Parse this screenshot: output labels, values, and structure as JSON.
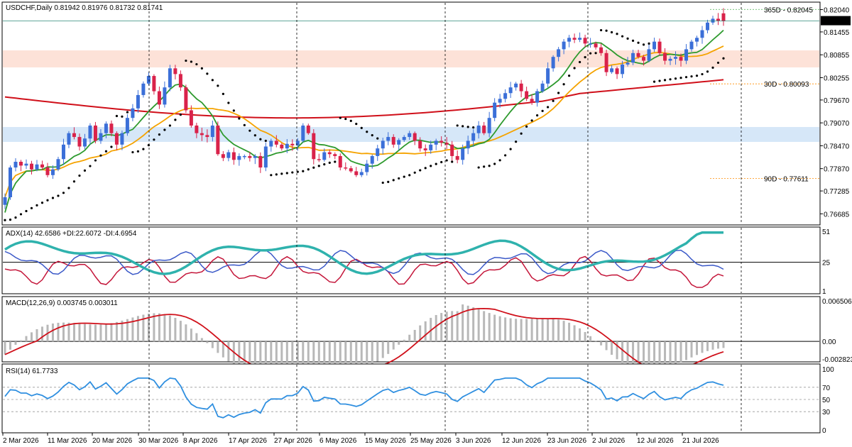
{
  "main": {
    "header": "USDCHF,Daily  0.81942 0.81976 0.81732 0.81741",
    "price_ticks": [
      "0.82040",
      "0.81455",
      "0.80855",
      "0.80255",
      "0.79670",
      "0.79070",
      "0.78470",
      "0.77870",
      "0.77285",
      "0.76685"
    ],
    "current_price": "0.81741",
    "levels": [
      {
        "label": "365D - 0.82045",
        "value": 0.82045,
        "color": "#4caf50"
      },
      {
        "label": "30D - 0.80093",
        "value": 0.80093,
        "color": "#ff8c00"
      },
      {
        "label": "90D - 0.77611",
        "value": 0.77611,
        "color": "#ff8c00"
      }
    ]
  },
  "adx": {
    "header": "ADX(14) 42.6586 +DI:22.6072 -DI:4.6954",
    "ticks": [
      "51",
      "25",
      "1"
    ]
  },
  "macd": {
    "header": "MACD(12,26,9) 0.003745 0.003011",
    "ticks": [
      "0.006506",
      "0.00",
      "-0.002823"
    ]
  },
  "rsi": {
    "header": "RSI(14) 61.7733",
    "ticks": [
      "100",
      "70",
      "50",
      "30",
      "0"
    ]
  },
  "x_labels": [
    "2 Mar 2026",
    "11 Mar 2026",
    "20 Mar 2026",
    "30 Mar 2026",
    "8 Apr 2026",
    "17 Apr 2026",
    "27 Apr 2026",
    "6 May 2026",
    "15 May 2026",
    "25 May 2026",
    "3 Jun 2026",
    "12 Jun 2026",
    "23 Jun 2026",
    "2 Jul 2026",
    "12 Jul 2026",
    "21 Jul 2026"
  ],
  "colors": {
    "bull": "#3b6fd8",
    "bear": "#d9224a",
    "ma_red": "#d0101a",
    "ma_green": "#2e9a2e",
    "ma_orange": "#f5a300",
    "adx": "#2fb2ad",
    "di_plus": "#3b59c8",
    "di_minus": "#c4163a",
    "macd_hist": "#b8b8b8",
    "macd_signal": "#d0101a",
    "rsi": "#2f8fe0"
  },
  "chart_data": [
    {
      "type": "candlestick",
      "title": "USDCHF,Daily",
      "x_start": "2 Mar 2026",
      "x_end": "31 Jul 2026",
      "ylim": [
        0.7645,
        0.8218
      ],
      "ohlc_last": {
        "open": 0.81942,
        "high": 0.81976,
        "low": 0.81732,
        "close": 0.81741
      },
      "closes": [
        0.7712,
        0.779,
        0.7805,
        0.7795,
        0.78,
        0.7785,
        0.7798,
        0.779,
        0.777,
        0.7785,
        0.7812,
        0.785,
        0.788,
        0.787,
        0.7845,
        0.7866,
        0.79,
        0.786,
        0.788,
        0.7905,
        0.788,
        0.785,
        0.788,
        0.792,
        0.7945,
        0.798,
        0.801,
        0.803,
        0.799,
        0.7955,
        0.8,
        0.805,
        0.8035,
        0.8,
        0.794,
        0.79,
        0.788,
        0.7875,
        0.787,
        0.79,
        0.7825,
        0.7815,
        0.783,
        0.781,
        0.782,
        0.782,
        0.7815,
        0.782,
        0.779,
        0.7845,
        0.786,
        0.785,
        0.784,
        0.7852,
        0.7848,
        0.786,
        0.79,
        0.788,
        0.7812,
        0.781,
        0.783,
        0.7825,
        0.782,
        0.779,
        0.7788,
        0.778,
        0.777,
        0.7778,
        0.78,
        0.782,
        0.784,
        0.786,
        0.787,
        0.785,
        0.7862,
        0.787,
        0.788,
        0.786,
        0.784,
        0.7835,
        0.785,
        0.786,
        0.7855,
        0.785,
        0.782,
        0.781,
        0.784,
        0.786,
        0.788,
        0.79,
        0.788,
        0.792,
        0.796,
        0.797,
        0.7985,
        0.8,
        0.801,
        0.799,
        0.797,
        0.796,
        0.799,
        0.801,
        0.805,
        0.808,
        0.81,
        0.812,
        0.813,
        0.8125,
        0.813,
        0.8115,
        0.8115,
        0.8105,
        0.809,
        0.804,
        0.805,
        0.8035,
        0.806,
        0.8065,
        0.809,
        0.808,
        0.807,
        0.81,
        0.812,
        0.809,
        0.807,
        0.8075,
        0.808,
        0.807,
        0.81,
        0.812,
        0.813,
        0.815,
        0.817,
        0.818,
        0.8175,
        0.8174
      ],
      "moving_averages": [
        {
          "name": "MA (red, long)",
          "values_start": 0.7975,
          "values_end": 0.7972
        },
        {
          "name": "MA (green, short)",
          "values_start": 0.7725,
          "values_end": 0.8128
        },
        {
          "name": "MA (orange, medium)",
          "values_start": 0.779,
          "values_end": 0.806
        }
      ],
      "zones": [
        {
          "from": 0.8068,
          "to": 0.8106,
          "color": "#fde2d8"
        },
        {
          "from": 0.7875,
          "to": 0.7912,
          "color": "#d6e7f8"
        }
      ]
    },
    {
      "type": "line",
      "title": "ADX(14)",
      "series": [
        {
          "name": "ADX",
          "last": 42.6586
        },
        {
          "name": "+DI",
          "last": 22.6072
        },
        {
          "name": "-DI",
          "last": 4.6954
        }
      ],
      "ylim": [
        1,
        51
      ]
    },
    {
      "type": "bar",
      "title": "MACD(12,26,9)",
      "series": [
        {
          "name": "MACD",
          "last": 0.003745
        },
        {
          "name": "Signal",
          "last": 0.003011
        }
      ],
      "ylim": [
        -0.002823,
        0.006506
      ]
    },
    {
      "type": "line",
      "title": "RSI(14)",
      "series": [
        {
          "name": "RSI",
          "last": 61.7733
        }
      ],
      "ylim": [
        0,
        100
      ]
    }
  ]
}
